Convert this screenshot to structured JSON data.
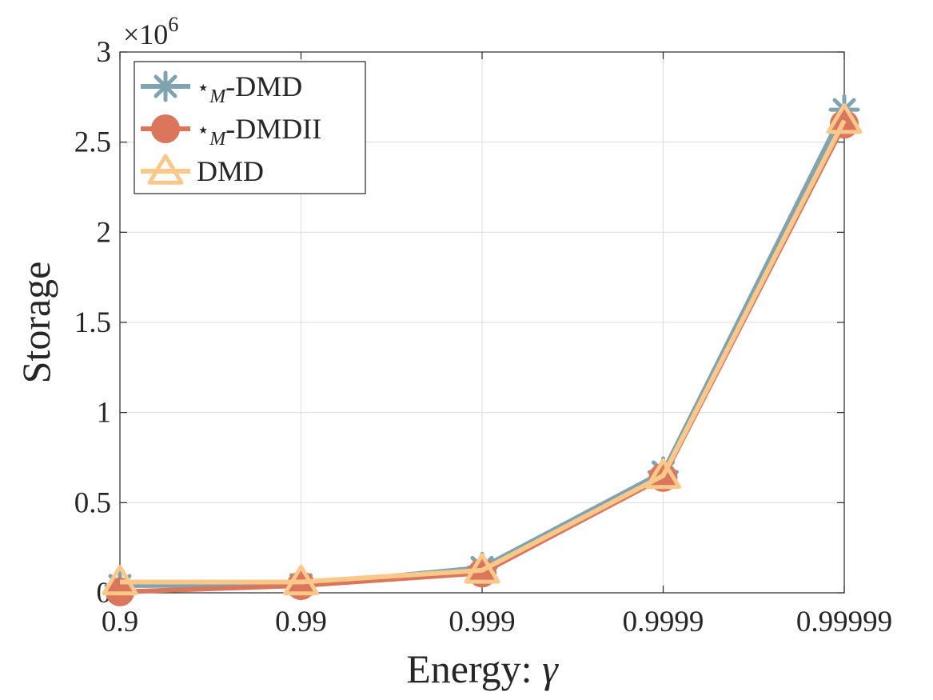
{
  "chart_data": {
    "type": "line",
    "categories": [
      "0.9",
      "0.99",
      "0.999",
      "0.9999",
      "0.99999"
    ],
    "xlabel_text": "Energy: ",
    "xlabel_symbol": "γ",
    "ylabel": "Storage",
    "ylim": [
      0,
      3000000
    ],
    "yticks": [
      0,
      500000,
      1000000,
      1500000,
      2000000,
      2500000,
      3000000
    ],
    "ytick_labels": [
      "0",
      "0.5",
      "1",
      "1.5",
      "2",
      "2.5",
      "3"
    ],
    "exponent_base": "×10",
    "exponent_power": "6",
    "grid": true,
    "legend_position": "top-left",
    "series": [
      {
        "name": "⋆M-DMD",
        "legend_star": "⋆",
        "legend_sub": "M",
        "legend_rest": "-DMD",
        "marker": "asterisk",
        "color": "#7fa4b0",
        "values": [
          40000,
          45000,
          140000,
          670000,
          2680000
        ]
      },
      {
        "name": "⋆M-DMDII",
        "legend_star": "⋆",
        "legend_sub": "M",
        "legend_rest": "-DMDII",
        "marker": "circle",
        "color": "#d9765b",
        "values": [
          5000,
          40000,
          110000,
          640000,
          2600000
        ]
      },
      {
        "name": "DMD",
        "legend_star": "",
        "legend_sub": "",
        "legend_rest": "DMD",
        "marker": "triangle",
        "color": "#fcc88a",
        "values": [
          60000,
          60000,
          125000,
          650000,
          2620000
        ]
      }
    ]
  }
}
